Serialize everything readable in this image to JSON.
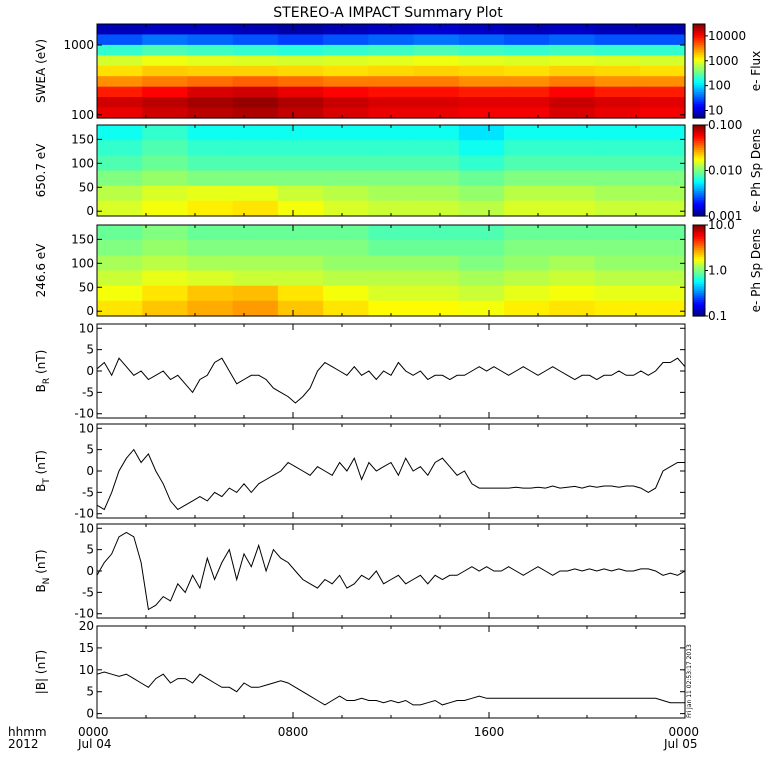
{
  "title": "STEREO-A IMPACT Summary Plot",
  "footer": {
    "hhmm": "hhmm",
    "year": "2012",
    "date_start": "Jul 04",
    "date_end": "Jul 05"
  },
  "side_stamp": "Fri Jan 11 02:53:17 2013",
  "colors": {
    "axis": "#000000",
    "trace": "#000000"
  },
  "chart_data": [
    {
      "id": "swea",
      "type": "heatmap",
      "ylabel": "SWEA (eV)",
      "yscale": "log",
      "ylim": [
        90,
        2000
      ],
      "yticks": [
        {
          "v": 100,
          "label": "100"
        },
        {
          "v": 1000,
          "label": "1000"
        }
      ],
      "colorbar": {
        "label": "e- Flux",
        "scale": "log",
        "range": [
          5,
          30000
        ],
        "ticks": [
          {
            "v": 10,
            "label": "10"
          },
          {
            "v": 100,
            "label": "100"
          },
          {
            "v": 1000,
            "label": "1000"
          },
          {
            "v": 10000,
            "label": "10000"
          }
        ]
      },
      "x_hours": [
        0,
        2,
        4,
        6,
        8,
        10,
        12,
        14,
        16,
        18,
        20,
        22,
        24
      ],
      "y_levels_eV": [
        1900,
        1500,
        1200,
        900,
        600,
        400,
        250,
        150,
        100
      ],
      "z_flux": [
        [
          8,
          9,
          9,
          8,
          7,
          8,
          9,
          10,
          9,
          8,
          9,
          8,
          8
        ],
        [
          30,
          40,
          35,
          30,
          25,
          30,
          35,
          40,
          35,
          30,
          35,
          30,
          30
        ],
        [
          200,
          250,
          220,
          200,
          180,
          200,
          220,
          250,
          220,
          200,
          220,
          200,
          200
        ],
        [
          800,
          1000,
          900,
          850,
          800,
          850,
          900,
          1000,
          900,
          850,
          900,
          850,
          800
        ],
        [
          1500,
          1800,
          1700,
          1700,
          1600,
          1500,
          1600,
          1700,
          1600,
          1500,
          1700,
          1600,
          1500
        ],
        [
          3000,
          3500,
          4000,
          4500,
          4000,
          3500,
          3500,
          3500,
          3000,
          3000,
          3500,
          3000,
          3000
        ],
        [
          8000,
          10000,
          14000,
          15000,
          12000,
          10000,
          9000,
          9000,
          8000,
          8000,
          10000,
          8000,
          8000
        ],
        [
          15000,
          18000,
          22000,
          25000,
          20000,
          16000,
          14000,
          14000,
          13000,
          13000,
          16000,
          14000,
          13000
        ],
        [
          12000,
          15000,
          18000,
          20000,
          17000,
          14000,
          12000,
          12000,
          11000,
          11000,
          14000,
          12000,
          11000
        ]
      ]
    },
    {
      "id": "pad650",
      "type": "heatmap",
      "ylabel": "650.7 eV",
      "ylim": [
        -10,
        180
      ],
      "yticks": [
        {
          "v": 0,
          "label": "0"
        },
        {
          "v": 50,
          "label": "50"
        },
        {
          "v": 100,
          "label": "100"
        },
        {
          "v": 150,
          "label": "150"
        }
      ],
      "colorbar": {
        "label": "e- Ph Sp Dens",
        "scale": "log",
        "range": [
          0.001,
          0.1
        ],
        "ticks": [
          {
            "v": 0.001,
            "label": "0.001"
          },
          {
            "v": 0.01,
            "label": "0.010"
          },
          {
            "v": 0.1,
            "label": "0.100"
          }
        ]
      },
      "x_hours": [
        0,
        2,
        4,
        6,
        8,
        10,
        12,
        14,
        16,
        18,
        20,
        22,
        24
      ],
      "pitch_angles": [
        165,
        135,
        105,
        75,
        45,
        15
      ],
      "z": [
        [
          0.006,
          0.007,
          0.006,
          0.006,
          0.006,
          0.006,
          0.006,
          0.006,
          0.005,
          0.006,
          0.006,
          0.006,
          0.006
        ],
        [
          0.007,
          0.008,
          0.007,
          0.007,
          0.007,
          0.007,
          0.007,
          0.007,
          0.006,
          0.007,
          0.007,
          0.007,
          0.007
        ],
        [
          0.008,
          0.009,
          0.008,
          0.008,
          0.008,
          0.008,
          0.008,
          0.008,
          0.007,
          0.008,
          0.008,
          0.008,
          0.008
        ],
        [
          0.01,
          0.011,
          0.01,
          0.01,
          0.01,
          0.01,
          0.01,
          0.01,
          0.009,
          0.01,
          0.01,
          0.01,
          0.01
        ],
        [
          0.013,
          0.015,
          0.016,
          0.016,
          0.014,
          0.013,
          0.012,
          0.012,
          0.011,
          0.013,
          0.013,
          0.012,
          0.012
        ],
        [
          0.015,
          0.017,
          0.019,
          0.02,
          0.017,
          0.015,
          0.014,
          0.014,
          0.013,
          0.015,
          0.015,
          0.014,
          0.014
        ]
      ]
    },
    {
      "id": "pad246",
      "type": "heatmap",
      "ylabel": "246.6 eV",
      "ylim": [
        -10,
        180
      ],
      "yticks": [
        {
          "v": 0,
          "label": "0"
        },
        {
          "v": 50,
          "label": "50"
        },
        {
          "v": 100,
          "label": "100"
        },
        {
          "v": 150,
          "label": "150"
        }
      ],
      "colorbar": {
        "label": "e- Ph Sp Dens",
        "scale": "log",
        "range": [
          0.1,
          10
        ],
        "ticks": [
          {
            "v": 0.1,
            "label": "0.1"
          },
          {
            "v": 1,
            "label": "1.0"
          },
          {
            "v": 10,
            "label": "10.0"
          }
        ]
      },
      "x_hours": [
        0,
        2,
        4,
        6,
        8,
        10,
        12,
        14,
        16,
        18,
        20,
        22,
        24
      ],
      "pitch_angles": [
        165,
        135,
        105,
        75,
        45,
        15
      ],
      "z": [
        [
          0.9,
          1.0,
          0.9,
          0.9,
          0.9,
          0.9,
          0.8,
          0.8,
          0.8,
          0.9,
          0.9,
          0.9,
          0.9
        ],
        [
          1.0,
          1.1,
          1.0,
          1.0,
          1.0,
          1.0,
          0.9,
          0.9,
          0.9,
          1.0,
          1.0,
          1.0,
          1.0
        ],
        [
          1.2,
          1.3,
          1.2,
          1.2,
          1.2,
          1.1,
          1.1,
          1.1,
          1.0,
          1.1,
          1.2,
          1.1,
          1.1
        ],
        [
          1.4,
          1.6,
          1.5,
          1.4,
          1.4,
          1.3,
          1.3,
          1.3,
          1.2,
          1.3,
          1.4,
          1.3,
          1.3
        ],
        [
          1.7,
          2.0,
          2.3,
          2.4,
          2.0,
          1.7,
          1.5,
          1.5,
          1.4,
          1.6,
          1.7,
          1.6,
          1.6
        ],
        [
          2.0,
          2.3,
          2.6,
          2.8,
          2.3,
          2.0,
          1.8,
          1.8,
          1.7,
          1.9,
          2.0,
          1.9,
          1.9
        ]
      ]
    },
    {
      "id": "br",
      "type": "line",
      "ylabel": {
        "main": "B",
        "sub": "R",
        "unit": " (nT)"
      },
      "ylim": [
        -11,
        11
      ],
      "yticks": [
        {
          "v": -10,
          "label": "-10"
        },
        {
          "v": -5,
          "label": "-5"
        },
        {
          "v": 0,
          "label": "0"
        },
        {
          "v": 5,
          "label": "5"
        },
        {
          "v": 10,
          "label": "10"
        }
      ],
      "x": [
        0,
        0.3,
        0.6,
        0.9,
        1.2,
        1.5,
        1.8,
        2.1,
        2.4,
        2.7,
        3.0,
        3.3,
        3.6,
        3.9,
        4.2,
        4.5,
        4.8,
        5.1,
        5.4,
        5.7,
        6.0,
        6.3,
        6.6,
        6.9,
        7.2,
        7.5,
        7.8,
        8.1,
        8.4,
        8.7,
        9.0,
        9.3,
        9.6,
        9.9,
        10.2,
        10.5,
        10.8,
        11.1,
        11.4,
        11.7,
        12.0,
        12.3,
        12.6,
        12.9,
        13.2,
        13.5,
        13.8,
        14.1,
        14.4,
        14.7,
        15.0,
        15.3,
        15.6,
        15.9,
        16.2,
        16.5,
        16.8,
        17.1,
        17.4,
        17.7,
        18.0,
        18.3,
        18.6,
        18.9,
        19.2,
        19.5,
        19.8,
        20.1,
        20.4,
        20.7,
        21.0,
        21.3,
        21.6,
        21.9,
        22.2,
        22.5,
        22.8,
        23.1,
        23.4,
        23.7,
        24.0
      ],
      "y": [
        0.5,
        2,
        -1,
        3,
        1,
        -1,
        0,
        -2,
        -1,
        0,
        -2,
        -1,
        -3,
        -5,
        -2,
        -1,
        2,
        3,
        0,
        -3,
        -2,
        -1,
        -1,
        -2,
        -4,
        -5,
        -6,
        -7.5,
        -6,
        -4,
        0,
        2,
        1,
        0,
        -1,
        1,
        -1,
        0,
        -2,
        0,
        -1,
        2,
        0,
        -1,
        0,
        -2,
        -1,
        -1,
        -2,
        -1,
        -1,
        0,
        1,
        0,
        1,
        0,
        -1,
        0,
        1,
        0,
        -1,
        0,
        1,
        0,
        -1,
        -2,
        -1,
        -1,
        -2,
        -1,
        -1,
        0,
        -1,
        -1,
        0,
        -1,
        0,
        2,
        2,
        3,
        1
      ]
    },
    {
      "id": "bt",
      "type": "line",
      "ylabel": {
        "main": "B",
        "sub": "T",
        "unit": " (nT)"
      },
      "ylim": [
        -11,
        11
      ],
      "yticks": [
        {
          "v": -10,
          "label": "-10"
        },
        {
          "v": -5,
          "label": "-5"
        },
        {
          "v": 0,
          "label": "0"
        },
        {
          "v": 5,
          "label": "5"
        },
        {
          "v": 10,
          "label": "10"
        }
      ],
      "x": [
        0,
        0.3,
        0.6,
        0.9,
        1.2,
        1.5,
        1.8,
        2.1,
        2.4,
        2.7,
        3.0,
        3.3,
        3.6,
        3.9,
        4.2,
        4.5,
        4.8,
        5.1,
        5.4,
        5.7,
        6.0,
        6.3,
        6.6,
        6.9,
        7.2,
        7.5,
        7.8,
        8.1,
        8.4,
        8.7,
        9.0,
        9.3,
        9.6,
        9.9,
        10.2,
        10.5,
        10.8,
        11.1,
        11.4,
        11.7,
        12.0,
        12.3,
        12.6,
        12.9,
        13.2,
        13.5,
        13.8,
        14.1,
        14.4,
        14.7,
        15.0,
        15.3,
        15.6,
        15.9,
        16.2,
        16.5,
        16.8,
        17.1,
        17.4,
        17.7,
        18.0,
        18.3,
        18.6,
        18.9,
        19.2,
        19.5,
        19.8,
        20.1,
        20.4,
        20.7,
        21.0,
        21.3,
        21.6,
        21.9,
        22.2,
        22.5,
        22.8,
        23.1,
        23.4,
        23.7,
        24.0
      ],
      "y": [
        -8,
        -9,
        -5,
        0,
        3,
        5,
        2,
        4,
        0,
        -3,
        -7,
        -9,
        -8,
        -7,
        -6,
        -7,
        -5,
        -6,
        -4,
        -5,
        -3,
        -5,
        -3,
        -2,
        -1,
        0,
        2,
        1,
        0,
        -1,
        1,
        0,
        -1,
        2,
        0,
        3,
        -2,
        2,
        0,
        1,
        2,
        -1,
        3,
        0,
        1,
        -1,
        2,
        3,
        1,
        -1,
        0,
        -3,
        -4,
        -4,
        -4,
        -4,
        -4,
        -3.8,
        -4,
        -4,
        -3.8,
        -4,
        -3.5,
        -4,
        -3.8,
        -3.6,
        -4,
        -3.5,
        -3.8,
        -3.5,
        -3.5,
        -3.8,
        -3.5,
        -3.5,
        -4,
        -5,
        -4,
        0,
        1,
        2,
        2
      ]
    },
    {
      "id": "bn",
      "type": "line",
      "ylabel": {
        "main": "B",
        "sub": "N",
        "unit": " (nT)"
      },
      "ylim": [
        -11,
        11
      ],
      "yticks": [
        {
          "v": -10,
          "label": "-10"
        },
        {
          "v": -5,
          "label": "-5"
        },
        {
          "v": 0,
          "label": "0"
        },
        {
          "v": 5,
          "label": "5"
        },
        {
          "v": 10,
          "label": "10"
        }
      ],
      "x": [
        0,
        0.3,
        0.6,
        0.9,
        1.2,
        1.5,
        1.8,
        2.1,
        2.4,
        2.7,
        3.0,
        3.3,
        3.6,
        3.9,
        4.2,
        4.5,
        4.8,
        5.1,
        5.4,
        5.7,
        6.0,
        6.3,
        6.6,
        6.9,
        7.2,
        7.5,
        7.8,
        8.1,
        8.4,
        8.7,
        9.0,
        9.3,
        9.6,
        9.9,
        10.2,
        10.5,
        10.8,
        11.1,
        11.4,
        11.7,
        12.0,
        12.3,
        12.6,
        12.9,
        13.2,
        13.5,
        13.8,
        14.1,
        14.4,
        14.7,
        15.0,
        15.3,
        15.6,
        15.9,
        16.2,
        16.5,
        16.8,
        17.1,
        17.4,
        17.7,
        18.0,
        18.3,
        18.6,
        18.9,
        19.2,
        19.5,
        19.8,
        20.1,
        20.4,
        20.7,
        21.0,
        21.3,
        21.6,
        21.9,
        22.2,
        22.5,
        22.8,
        23.1,
        23.4,
        23.7,
        24.0
      ],
      "y": [
        -1,
        2,
        4,
        8,
        9,
        8,
        2,
        -9,
        -8,
        -6,
        -7,
        -3,
        -5,
        -1,
        -4,
        3,
        -2,
        2,
        5,
        -2,
        4,
        1,
        6,
        0,
        5,
        3,
        2,
        0,
        -2,
        -3,
        -4,
        -2,
        -3,
        -1,
        -4,
        -3,
        -1,
        -2,
        0,
        -3,
        -2,
        -1,
        -3,
        -2,
        -1,
        -3,
        -1,
        -2,
        -1,
        -1,
        0,
        1,
        0,
        1,
        0,
        0,
        1,
        0,
        -1,
        0,
        1,
        0,
        -1,
        0,
        0,
        0.5,
        0,
        0.5,
        0,
        0.5,
        0,
        0.5,
        0,
        0,
        0.5,
        0.5,
        0,
        -1,
        -0.5,
        -1,
        0
      ]
    },
    {
      "id": "bmag",
      "type": "line",
      "ylabel": {
        "main": "|B|",
        "sub": "",
        "unit": " (nT)"
      },
      "ylim": [
        -1,
        20
      ],
      "yticks": [
        {
          "v": 0,
          "label": "0"
        },
        {
          "v": 5,
          "label": "5"
        },
        {
          "v": 10,
          "label": "10"
        },
        {
          "v": 15,
          "label": "15"
        },
        {
          "v": 20,
          "label": "20"
        }
      ],
      "x": [
        0,
        0.3,
        0.6,
        0.9,
        1.2,
        1.5,
        1.8,
        2.1,
        2.4,
        2.7,
        3.0,
        3.3,
        3.6,
        3.9,
        4.2,
        4.5,
        4.8,
        5.1,
        5.4,
        5.7,
        6.0,
        6.3,
        6.6,
        6.9,
        7.2,
        7.5,
        7.8,
        8.1,
        8.4,
        8.7,
        9.0,
        9.3,
        9.6,
        9.9,
        10.2,
        10.5,
        10.8,
        11.1,
        11.4,
        11.7,
        12.0,
        12.3,
        12.6,
        12.9,
        13.2,
        13.5,
        13.8,
        14.1,
        14.4,
        14.7,
        15.0,
        15.3,
        15.6,
        15.9,
        16.2,
        16.5,
        16.8,
        17.1,
        17.4,
        17.7,
        18.0,
        18.3,
        18.6,
        18.9,
        19.2,
        19.5,
        19.8,
        20.1,
        20.4,
        20.7,
        21.0,
        21.3,
        21.6,
        21.9,
        22.2,
        22.5,
        22.8,
        23.1,
        23.4,
        23.7,
        24.0
      ],
      "y": [
        9,
        9.5,
        9,
        8.5,
        9,
        8,
        7,
        6,
        8,
        9,
        7,
        8,
        8,
        7,
        9,
        8,
        7,
        6,
        6,
        5,
        7,
        6,
        6,
        6.5,
        7,
        7.5,
        7,
        6,
        5,
        4,
        3,
        2,
        3,
        4,
        3,
        3,
        3.5,
        3,
        3,
        2.5,
        3,
        2.5,
        3,
        2,
        2,
        2.5,
        3,
        2,
        2.5,
        3,
        3,
        3.5,
        4,
        3.5,
        3.5,
        3.5,
        3.5,
        3.5,
        3.5,
        3.5,
        3.5,
        3.5,
        3.5,
        3.5,
        3.5,
        3.5,
        3.5,
        3.5,
        3.5,
        3.5,
        3.5,
        3.5,
        3.5,
        3.5,
        3.5,
        3.5,
        3.5,
        3,
        2.5,
        2.5,
        2.5
      ]
    }
  ],
  "x_axis": {
    "range_hours": [
      0,
      24
    ],
    "ticks": [
      {
        "v": 0,
        "label": "0000"
      },
      {
        "v": 8,
        "label": "0800"
      },
      {
        "v": 16,
        "label": "1600"
      },
      {
        "v": 24,
        "label": "0000"
      }
    ]
  }
}
